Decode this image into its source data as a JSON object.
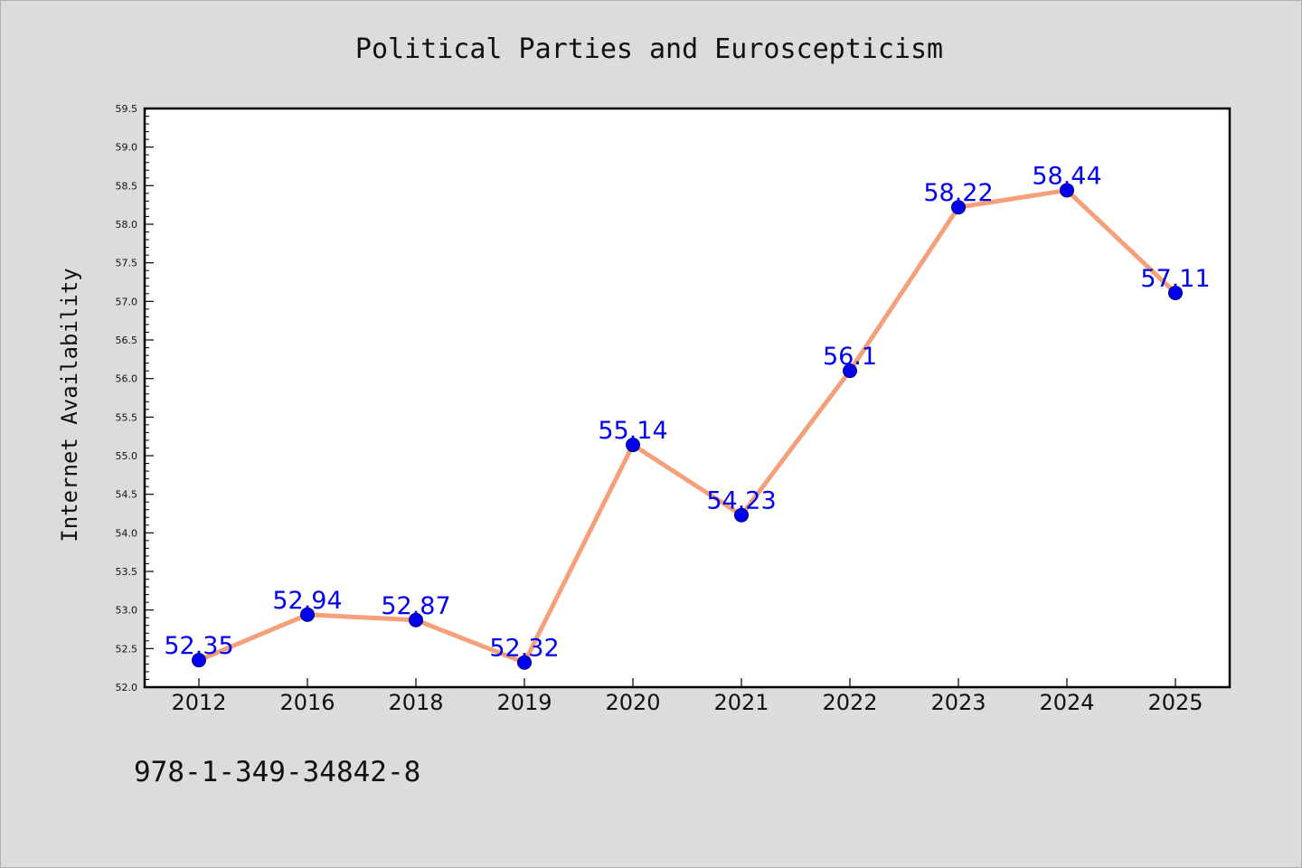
{
  "chart_data": {
    "type": "line",
    "title": "Political Parties and Euroscepticism",
    "xlabel": "",
    "ylabel": "Internet Availability",
    "categories": [
      "2012",
      "2016",
      "2018",
      "2019",
      "2020",
      "2021",
      "2022",
      "2023",
      "2024",
      "2025"
    ],
    "series": [
      {
        "values": [
          52.35,
          52.94,
          52.87,
          52.32,
          55.14,
          54.23,
          56.1,
          58.22,
          58.44,
          57.11
        ],
        "data_labels": [
          "52.35",
          "52.94",
          "52.87",
          "52.32",
          "55.14",
          "54.23",
          "56.1",
          "58.22",
          "58.44",
          "57.11"
        ]
      }
    ],
    "ylim": [
      52.0,
      59.5
    ],
    "yticks": [
      "52.0",
      "52.5",
      "53.0",
      "53.5",
      "54.0",
      "54.5",
      "55.0",
      "55.5",
      "56.0",
      "56.5",
      "57.0",
      "57.5",
      "58.0",
      "58.5",
      "59.0",
      "59.5"
    ],
    "grid": false,
    "legend": "none",
    "colors": {
      "line": "#f4a07a",
      "marker": "#0000ee",
      "marker_edge": "#00007a",
      "data_label": "#0000ee",
      "plot_background": "#ffffff",
      "figure_background": "#dcdcdc"
    }
  },
  "footer": {
    "code": "978-1-349-34842-8"
  }
}
